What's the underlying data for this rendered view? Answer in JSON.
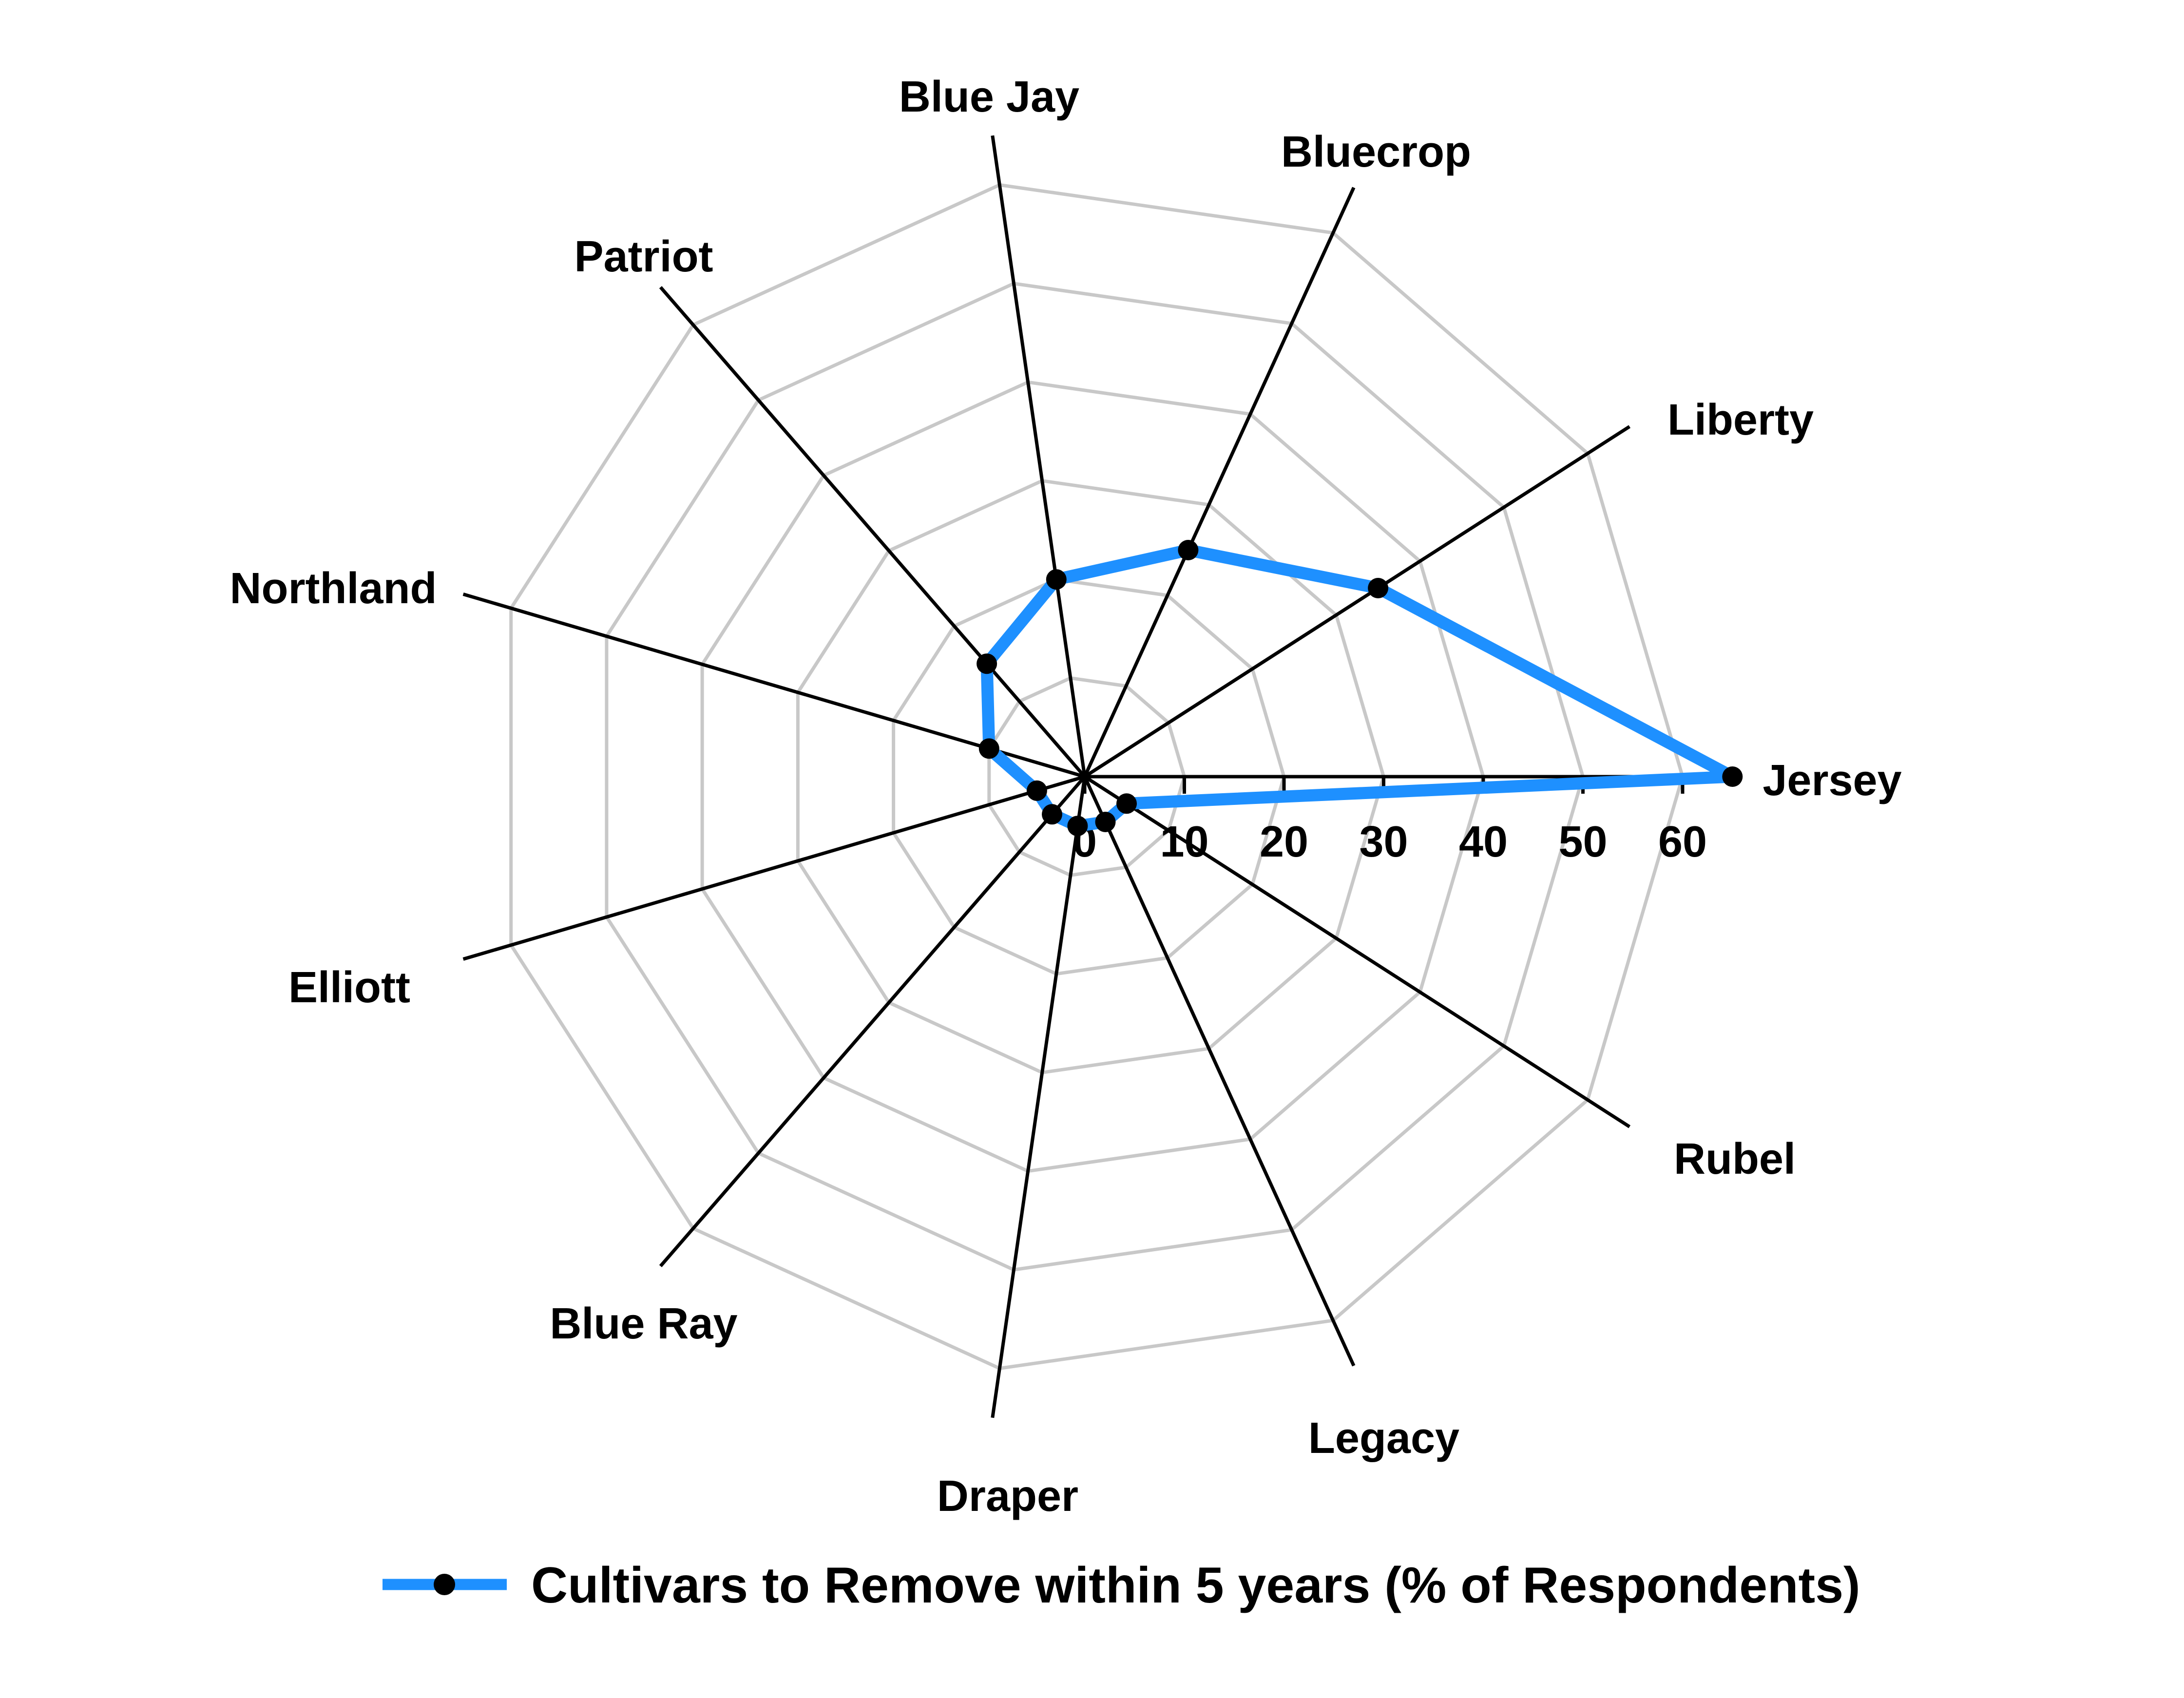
{
  "chart_data": {
    "type": "radar",
    "categories": [
      "Jersey",
      "Liberty",
      "Bluecrop",
      "Blue Jay",
      "Patriot",
      "Northland",
      "Elliott",
      "Blue Ray",
      "Draper",
      "Legacy",
      "Rubel"
    ],
    "series": [
      {
        "name": "Cultivars to Remove within 5 years (% of Respondents)",
        "values": [
          65,
          35,
          25,
          20,
          15,
          10,
          5,
          5,
          5,
          5,
          5
        ],
        "line_color": "#1E90FF",
        "marker_color": "#000000"
      }
    ],
    "axis": {
      "min": 0,
      "max": 65,
      "ticks": [
        0,
        10,
        20,
        30,
        40,
        50,
        60
      ],
      "tick_labels": [
        "0",
        "10",
        "20",
        "30",
        "40",
        "50",
        "60"
      ],
      "start_angle_deg": 0,
      "direction": "counterclockwise"
    },
    "grid": {
      "rings": [
        10,
        20,
        30,
        40,
        50,
        60
      ],
      "ring_color": "#C8C8C8",
      "spoke_color": "#000000",
      "shape": "polygon"
    },
    "legend": {
      "position": "bottom",
      "label": "Cultivars to Remove within 5 years (% of Respondents)",
      "marker": "circle"
    }
  }
}
